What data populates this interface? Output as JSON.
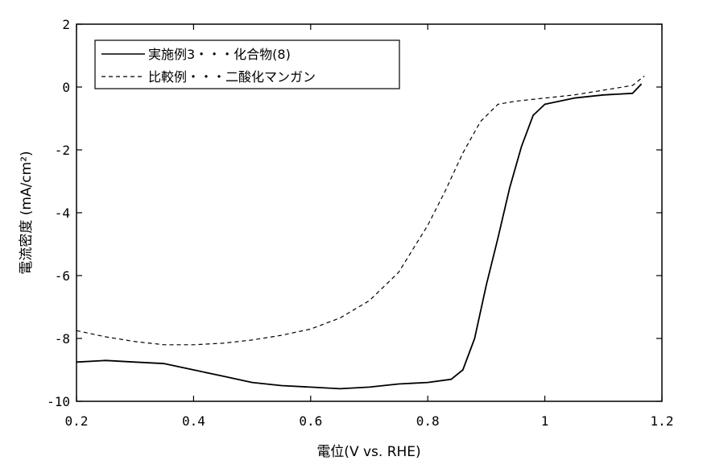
{
  "chart_data": {
    "type": "line",
    "title": "",
    "xlabel": "電位(V vs. RHE)",
    "ylabel": "電流密度 (mA/cm²)",
    "xlim": [
      0.2,
      1.2
    ],
    "ylim": [
      -10,
      2
    ],
    "xticks": [
      0.2,
      0.4,
      0.6,
      0.8,
      1.0,
      1.2
    ],
    "xtick_labels": [
      "0.2",
      "0.4",
      "0.6",
      "0.8",
      "1",
      "1.2"
    ],
    "yticks": [
      2,
      0,
      -2,
      -4,
      -6,
      -8,
      -10
    ],
    "ytick_labels": [
      "2",
      "0",
      "-2",
      "-4",
      "-6",
      "-8",
      "-10"
    ],
    "grid": false,
    "legend_position": "top-left",
    "series": [
      {
        "name": "実施例3・・・化合物(8)",
        "style": "solid",
        "color": "#000000",
        "x": [
          0.2,
          0.25,
          0.3,
          0.35,
          0.4,
          0.45,
          0.5,
          0.55,
          0.6,
          0.65,
          0.7,
          0.75,
          0.8,
          0.84,
          0.86,
          0.88,
          0.9,
          0.92,
          0.94,
          0.96,
          0.98,
          1.0,
          1.05,
          1.1,
          1.15,
          1.165
        ],
        "y": [
          -8.75,
          -8.7,
          -8.75,
          -8.8,
          -9.0,
          -9.2,
          -9.4,
          -9.5,
          -9.55,
          -9.6,
          -9.55,
          -9.45,
          -9.4,
          -9.3,
          -9.0,
          -8.0,
          -6.3,
          -4.8,
          -3.2,
          -1.9,
          -0.9,
          -0.55,
          -0.35,
          -0.25,
          -0.2,
          0.1
        ]
      },
      {
        "name": "比較例・・・二酸化マンガン",
        "style": "dashed",
        "color": "#000000",
        "x": [
          0.2,
          0.25,
          0.3,
          0.35,
          0.4,
          0.45,
          0.5,
          0.55,
          0.6,
          0.65,
          0.7,
          0.75,
          0.8,
          0.83,
          0.86,
          0.89,
          0.92,
          0.95,
          1.0,
          1.05,
          1.1,
          1.15,
          1.17
        ],
        "y": [
          -7.75,
          -7.95,
          -8.1,
          -8.2,
          -8.2,
          -8.15,
          -8.05,
          -7.9,
          -7.7,
          -7.35,
          -6.8,
          -5.9,
          -4.4,
          -3.3,
          -2.1,
          -1.1,
          -0.55,
          -0.45,
          -0.35,
          -0.25,
          -0.1,
          0.05,
          0.35
        ]
      }
    ]
  }
}
